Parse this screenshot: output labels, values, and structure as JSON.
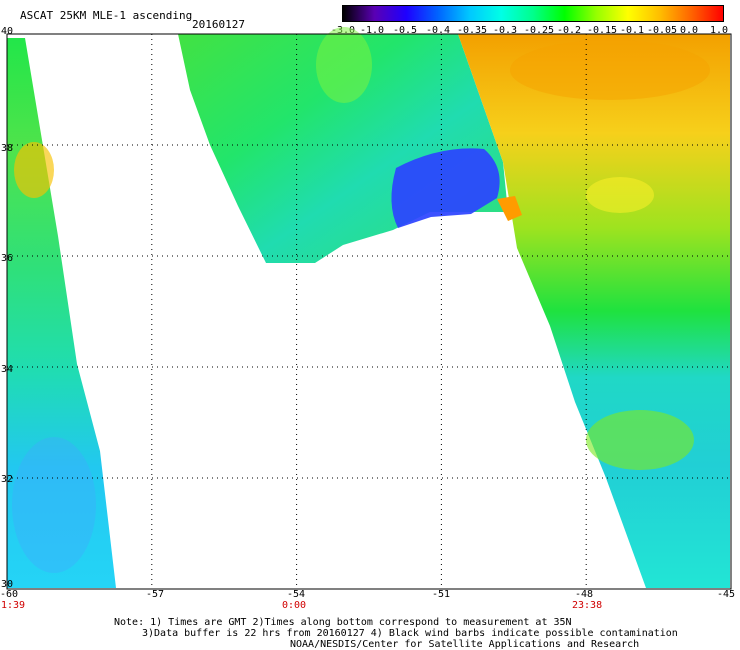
{
  "header": {
    "title": "ASCAT 25KM MLE-1 ascending",
    "date": "20160127"
  },
  "colorbar": {
    "tick_labels": [
      "-3.0",
      "-1.0",
      "-0.5",
      "-0.4",
      "-0.35",
      "-0.3",
      "-0.25",
      "-0.2",
      "-0.15",
      "-0.1",
      "-0.05",
      "0.0",
      "1.0"
    ],
    "colors": [
      "#000000",
      "#5a00b4",
      "#1e00ff",
      "#0064ff",
      "#00c8ff",
      "#00ffe6",
      "#00ff8c",
      "#00ff00",
      "#96ff00",
      "#ffff00",
      "#ffbe00",
      "#ff6400",
      "#ff0000"
    ]
  },
  "axes": {
    "x_labels": [
      "-60",
      "-57",
      "-54",
      "-51",
      "-48",
      "-45"
    ],
    "y_labels": [
      "40",
      "38",
      "36",
      "34",
      "32",
      "30"
    ],
    "time_labels": [
      "1:39",
      "0:00",
      "23:38"
    ]
  },
  "notes": {
    "line1": "Note: 1) Times are GMT 2)Times along bottom correspond to measurement at 35N",
    "line2": "3)Data buffer is 22 hrs from 20160127 4) Black wind barbs indicate possible contamination",
    "line3": "NOAA/NESDIS/Center for Satellite Applications and Research"
  },
  "map_data": {
    "lon_range": [
      -60,
      -45
    ],
    "lat_range": [
      30,
      40
    ],
    "gridlines_dotted": true,
    "swaths": [
      "left",
      "center",
      "right"
    ]
  }
}
